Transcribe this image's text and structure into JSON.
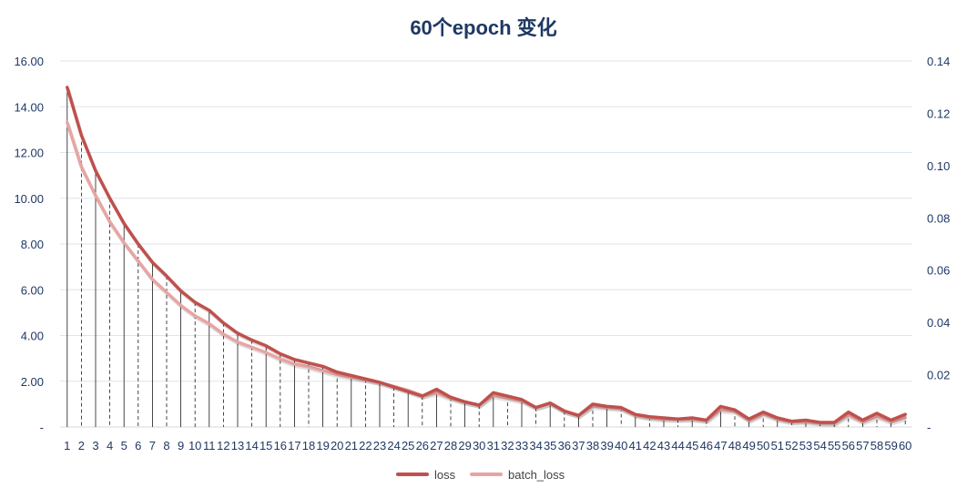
{
  "chart_data": {
    "type": "line",
    "title": "60个epoch 变化",
    "xlabel": "",
    "ylabel": "",
    "x": [
      1,
      2,
      3,
      4,
      5,
      6,
      7,
      8,
      9,
      10,
      11,
      12,
      13,
      14,
      15,
      16,
      17,
      18,
      19,
      20,
      21,
      22,
      23,
      24,
      25,
      26,
      27,
      28,
      29,
      30,
      31,
      32,
      33,
      34,
      35,
      36,
      37,
      38,
      39,
      40,
      41,
      42,
      43,
      44,
      45,
      46,
      47,
      48,
      49,
      50,
      51,
      52,
      53,
      54,
      55,
      56,
      57,
      58,
      59,
      60
    ],
    "y_left": {
      "ylim": [
        0,
        16
      ],
      "ticks": [
        "-",
        "2.00",
        "4.00",
        "6.00",
        "8.00",
        "10.00",
        "12.00",
        "14.00",
        "16.00"
      ]
    },
    "y_right": {
      "ylim": [
        0,
        0.14
      ],
      "ticks": [
        "-",
        "0.02",
        "0.04",
        "0.06",
        "0.08",
        "0.10",
        "0.12",
        "0.14"
      ]
    },
    "grid": true,
    "drop_lines": true,
    "legend_position": "bottom",
    "series": [
      {
        "name": "loss",
        "axis": "left",
        "color": "#c0504d",
        "values": [
          14.85,
          12.75,
          11.2,
          10.0,
          8.9,
          8.0,
          7.2,
          6.6,
          5.95,
          5.45,
          5.1,
          4.55,
          4.1,
          3.8,
          3.55,
          3.2,
          2.95,
          2.8,
          2.65,
          2.4,
          2.25,
          2.1,
          1.95,
          1.75,
          1.55,
          1.35,
          1.65,
          1.3,
          1.1,
          0.95,
          1.5,
          1.35,
          1.2,
          0.85,
          1.05,
          0.7,
          0.5,
          1.0,
          0.9,
          0.85,
          0.55,
          0.45,
          0.4,
          0.35,
          0.4,
          0.3,
          0.9,
          0.75,
          0.35,
          0.65,
          0.4,
          0.25,
          0.3,
          0.2,
          0.2,
          0.65,
          0.3,
          0.6,
          0.3,
          0.55
        ]
      },
      {
        "name": "batch_loss",
        "axis": "right",
        "color": "#e6a5a3",
        "values": [
          0.1165,
          0.0995,
          0.0885,
          0.0785,
          0.0705,
          0.0635,
          0.0565,
          0.0515,
          0.0465,
          0.0425,
          0.0395,
          0.0355,
          0.0325,
          0.0305,
          0.0285,
          0.026,
          0.024,
          0.023,
          0.0215,
          0.02,
          0.019,
          0.018,
          0.017,
          0.0155,
          0.014,
          0.012,
          0.013,
          0.011,
          0.0095,
          0.0085,
          0.012,
          0.011,
          0.01,
          0.0075,
          0.009,
          0.006,
          0.0045,
          0.008,
          0.0075,
          0.007,
          0.0045,
          0.0035,
          0.003,
          0.003,
          0.003,
          0.0025,
          0.0065,
          0.006,
          0.0025,
          0.005,
          0.003,
          0.002,
          0.002,
          0.0015,
          0.0015,
          0.0045,
          0.002,
          0.004,
          0.002,
          0.0035
        ]
      }
    ]
  }
}
